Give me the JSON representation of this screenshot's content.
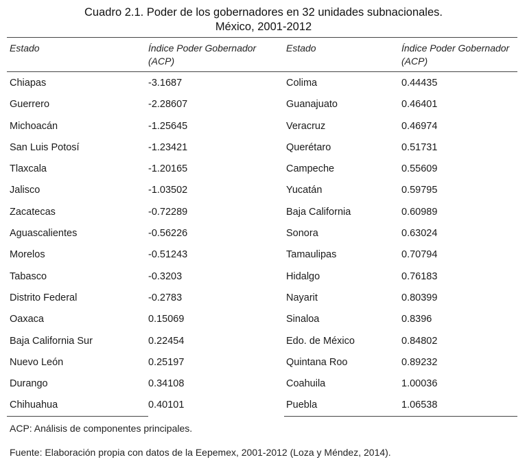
{
  "title": {
    "line1": "Cuadro 2.1. Poder de los gobernadores en 32 unidades subnacionales.",
    "line2": "México, 2001-2012"
  },
  "headers": {
    "estado": "Estado",
    "indice": "Índice Poder Gobernador (ACP)"
  },
  "left_rows": [
    {
      "estado": "Chiapas",
      "valor": "-3.1687"
    },
    {
      "estado": "Guerrero",
      "valor": "-2.28607"
    },
    {
      "estado": "Michoacán",
      "valor": "-1.25645"
    },
    {
      "estado": "San Luis Potosí",
      "valor": "-1.23421"
    },
    {
      "estado": "Tlaxcala",
      "valor": "-1.20165"
    },
    {
      "estado": "Jalisco",
      "valor": "-1.03502"
    },
    {
      "estado": "Zacatecas",
      "valor": "-0.72289"
    },
    {
      "estado": "Aguascalientes",
      "valor": "-0.56226"
    },
    {
      "estado": "Morelos",
      "valor": "-0.51243"
    },
    {
      "estado": "Tabasco",
      "valor": "-0.3203"
    },
    {
      "estado": "Distrito Federal",
      "valor": "-0.2783"
    },
    {
      "estado": "Oaxaca",
      "valor": "0.15069"
    },
    {
      "estado": "Baja California Sur",
      "valor": "0.22454"
    },
    {
      "estado": "Nuevo León",
      "valor": "0.25197"
    },
    {
      "estado": "Durango",
      "valor": "0.34108"
    },
    {
      "estado": "Chihuahua",
      "valor": "0.40101"
    }
  ],
  "right_rows": [
    {
      "estado": "Colima",
      "valor": "0.44435"
    },
    {
      "estado": "Guanajuato",
      "valor": "0.46401"
    },
    {
      "estado": "Veracruz",
      "valor": "0.46974"
    },
    {
      "estado": "Querétaro",
      "valor": "0.51731"
    },
    {
      "estado": "Campeche",
      "valor": "0.55609"
    },
    {
      "estado": "Yucatán",
      "valor": "0.59795"
    },
    {
      "estado": "Baja California",
      "valor": "0.60989"
    },
    {
      "estado": "Sonora",
      "valor": "0.63024"
    },
    {
      "estado": "Tamaulipas",
      "valor": "0.70794"
    },
    {
      "estado": "Hidalgo",
      "valor": "0.76183"
    },
    {
      "estado": "Nayarit",
      "valor": "0.80399"
    },
    {
      "estado": "Sinaloa",
      "valor": "0.8396"
    },
    {
      "estado": "Edo. de México",
      "valor": "0.84802"
    },
    {
      "estado": "Quintana Roo",
      "valor": "0.89232"
    },
    {
      "estado": "Coahuila",
      "valor": "1.00036"
    },
    {
      "estado": "Puebla",
      "valor": "1.06538"
    }
  ],
  "notes": {
    "acp": "ACP: Análisis de componentes principales.",
    "fuente": "Fuente: Elaboración propia con datos de la Eepemex, 2001-2012 (Loza y Méndez, 2014)."
  }
}
